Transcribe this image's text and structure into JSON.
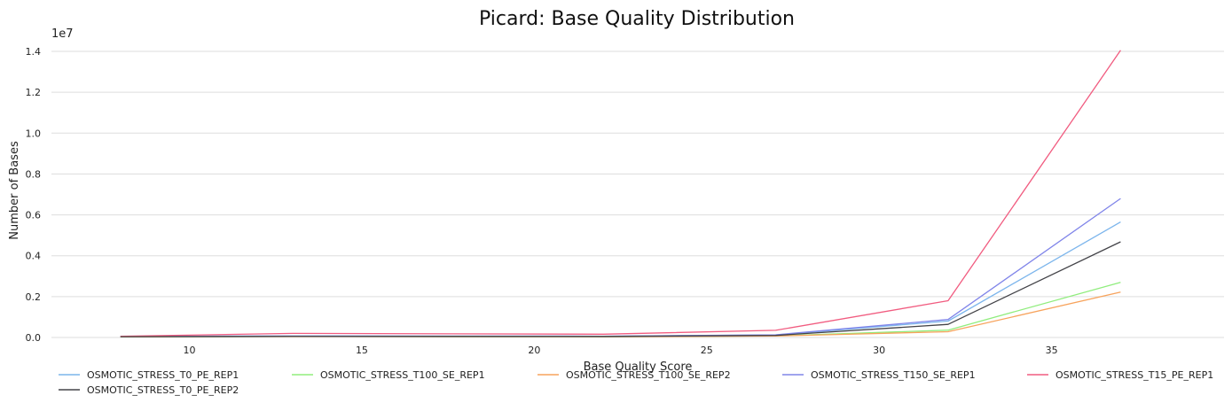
{
  "chart_data": {
    "type": "line",
    "title": "Picard: Base Quality Distribution",
    "xlabel": "Base Quality Score",
    "ylabel": "Number of Bases",
    "y_scale_label": "1e7",
    "xlim": [
      6,
      40
    ],
    "ylim": [
      0,
      1.4
    ],
    "x_ticks": [
      10,
      15,
      20,
      25,
      30,
      35
    ],
    "y_ticks": [
      0.0,
      0.2,
      0.4,
      0.6,
      0.8,
      1.0,
      1.2,
      1.4
    ],
    "y_tick_labels": [
      "0.0",
      "0.2",
      "0.4",
      "0.6",
      "0.8",
      "1.0",
      "1.2",
      "1.4"
    ],
    "grid": "horizontal",
    "legend_position": "bottom",
    "x": [
      8,
      13,
      22,
      27,
      32,
      37
    ],
    "series": [
      {
        "name": "OSMOTIC_STRESS_T0_PE_REP1",
        "color": "#7cb5ec",
        "values": [
          0.005,
          0.007,
          0.006,
          0.012,
          0.08,
          0.565
        ]
      },
      {
        "name": "OSMOTIC_STRESS_T100_SE_REP1",
        "color": "#90ed7d",
        "values": [
          0.004,
          0.005,
          0.004,
          0.008,
          0.036,
          0.27
        ]
      },
      {
        "name": "OSMOTIC_STRESS_T100_SE_REP2",
        "color": "#f7a35c",
        "values": [
          0.004,
          0.005,
          0.004,
          0.007,
          0.028,
          0.222
        ]
      },
      {
        "name": "OSMOTIC_STRESS_T150_SE_REP1",
        "color": "#8085e9",
        "values": [
          0.005,
          0.007,
          0.006,
          0.013,
          0.088,
          0.68
        ]
      },
      {
        "name": "OSMOTIC_STRESS_T15_PE_REP1",
        "color": "#f15c80",
        "values": [
          0.006,
          0.02,
          0.016,
          0.035,
          0.18,
          1.405
        ]
      },
      {
        "name": "OSMOTIC_STRESS_T0_PE_REP2",
        "color": "#434348",
        "values": [
          0.004,
          0.006,
          0.005,
          0.01,
          0.064,
          0.468
        ]
      }
    ]
  }
}
